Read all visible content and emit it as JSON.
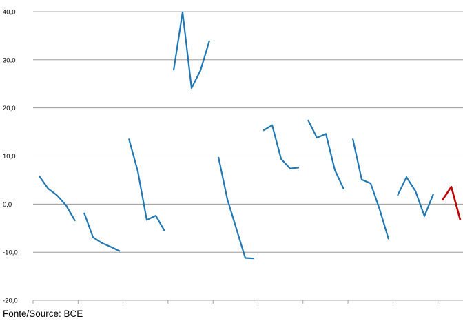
{
  "chart_data": {
    "type": "line",
    "title": "",
    "xlabel": "",
    "ylabel": "",
    "ylim": [
      -20,
      40
    ],
    "y_ticks": [
      {
        "value": 40,
        "label": "40,0"
      },
      {
        "value": 30,
        "label": "30,0"
      },
      {
        "value": 20,
        "label": "20,0"
      },
      {
        "value": 10,
        "label": "10,0"
      },
      {
        "value": 0,
        "label": "0,0"
      },
      {
        "value": -10,
        "label": "-10,0"
      },
      {
        "value": -20,
        "label": "-20,0"
      }
    ],
    "grid": true,
    "legend": "none",
    "x_category_groups": 10,
    "segments": [
      {
        "color": "#1F77B4",
        "points": [
          [
            1,
            5.8
          ],
          [
            2,
            3.2
          ],
          [
            3,
            1.8
          ],
          [
            4,
            -0.3
          ],
          [
            5,
            -3.5
          ]
        ]
      },
      {
        "color": "#1F77B4",
        "points": [
          [
            6,
            -1.8
          ],
          [
            7,
            -6.9
          ],
          [
            8,
            -8.1
          ],
          [
            9,
            -8.9
          ],
          [
            10,
            -9.8
          ]
        ]
      },
      {
        "color": "#1F77B4",
        "points": [
          [
            11,
            13.6
          ],
          [
            12,
            6.8
          ],
          [
            13,
            -3.3
          ],
          [
            14,
            -2.4
          ],
          [
            15,
            -5.6
          ]
        ]
      },
      {
        "color": "#1F77B4",
        "points": [
          [
            16,
            27.8
          ],
          [
            17,
            39.9
          ],
          [
            18,
            24.1
          ],
          [
            19,
            27.8
          ],
          [
            20,
            34.0
          ]
        ]
      },
      {
        "color": "#1F77B4",
        "points": [
          [
            21,
            9.8
          ],
          [
            22,
            1.0
          ],
          [
            23,
            -5.1
          ],
          [
            24,
            -11.2
          ],
          [
            25,
            -11.3
          ]
        ]
      },
      {
        "color": "#1F77B4",
        "points": [
          [
            26,
            15.3
          ],
          [
            27,
            16.4
          ],
          [
            28,
            9.4
          ],
          [
            29,
            7.4
          ],
          [
            30,
            7.6
          ]
        ]
      },
      {
        "color": "#1F77B4",
        "points": [
          [
            31,
            17.5
          ],
          [
            32,
            13.8
          ],
          [
            33,
            14.6
          ],
          [
            34,
            7.1
          ],
          [
            35,
            3.1
          ]
        ]
      },
      {
        "color": "#1F77B4",
        "points": [
          [
            36,
            13.6
          ],
          [
            37,
            5.1
          ],
          [
            38,
            4.3
          ],
          [
            39,
            -1.1
          ],
          [
            40,
            -7.3
          ]
        ]
      },
      {
        "color": "#1F77B4",
        "points": [
          [
            41,
            1.8
          ],
          [
            42,
            5.6
          ],
          [
            43,
            2.7
          ],
          [
            44,
            -2.5
          ],
          [
            45,
            2.1
          ]
        ]
      },
      {
        "color": "#C00000",
        "points": [
          [
            46,
            0.8
          ],
          [
            47,
            3.6
          ],
          [
            48,
            -3.3
          ]
        ]
      }
    ]
  },
  "source_text": "Fonte/Source: BCE"
}
